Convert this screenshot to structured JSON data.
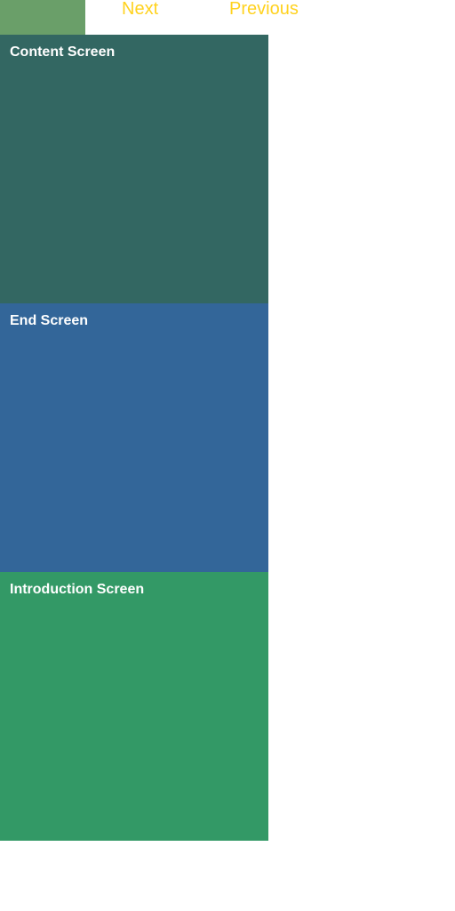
{
  "nav": {
    "next_label": "Next",
    "previous_label": "Previous"
  },
  "screens": [
    {
      "title": "Content Screen",
      "color": "#336762"
    },
    {
      "title": "End Screen",
      "color": "#336699"
    },
    {
      "title": "Introduction Screen",
      "color": "#339966"
    }
  ],
  "colors": {
    "top_block": "#6a9f69",
    "nav_text": "#ffd21f",
    "background": "#ffffff"
  }
}
